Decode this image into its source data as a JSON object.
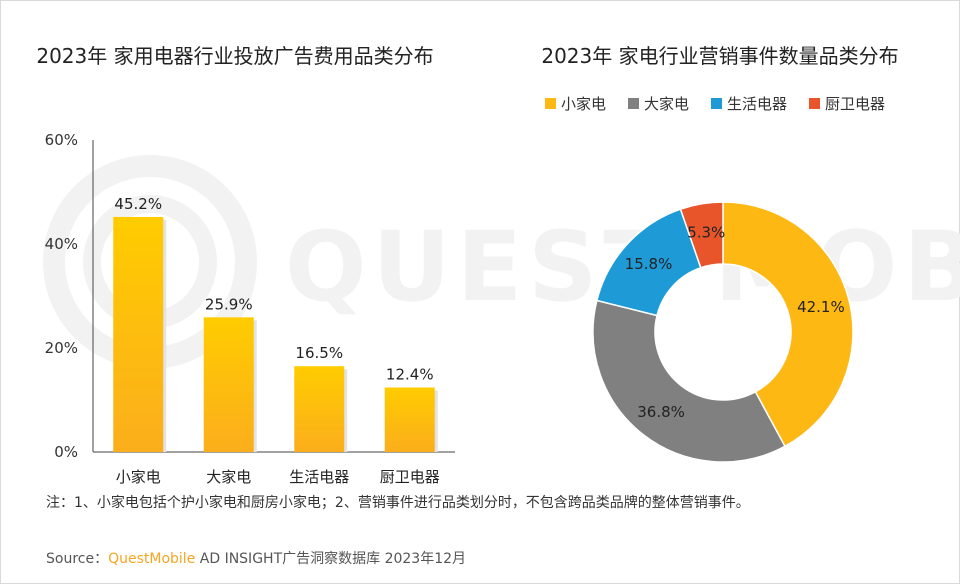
{
  "watermark": "QUEST MOBILE",
  "chart_data": [
    {
      "type": "bar",
      "title": "2023年 家用电器行业投放广告费用品类分布",
      "categories": [
        "小家电",
        "大家电",
        "生活电器",
        "厨卫电器"
      ],
      "values": [
        45.2,
        25.9,
        16.5,
        12.4
      ],
      "value_labels": [
        "45.2%",
        "25.9%",
        "16.5%",
        "12.4%"
      ],
      "ylim": [
        0,
        60
      ],
      "yticks": [
        "0%",
        "20%",
        "40%",
        "60%"
      ],
      "xlabel": "",
      "ylabel": "",
      "grid": false,
      "color": "#FDB813"
    },
    {
      "type": "pie",
      "donut": true,
      "title": "2023年 家电行业营销事件数量品类分布",
      "labels": [
        "小家电",
        "大家电",
        "生活电器",
        "厨卫电器"
      ],
      "values": [
        42.1,
        36.8,
        15.8,
        5.3
      ],
      "value_labels": [
        "42.1%",
        "36.8%",
        "15.8%",
        "5.3%"
      ],
      "colors": [
        "#FDB813",
        "#808080",
        "#1E9BD7",
        "#E8552B"
      ],
      "legend_position": "top"
    }
  ],
  "note": "注：1、小家电包括个护小家电和厨房小家电；2、营销事件进行品类划分时，不包含跨品类品牌的整体营销事件。",
  "source": {
    "prefix": "Source：",
    "brand": "QuestMobile",
    "rest": " AD INSIGHT广告洞察数据库 2023年12月"
  }
}
